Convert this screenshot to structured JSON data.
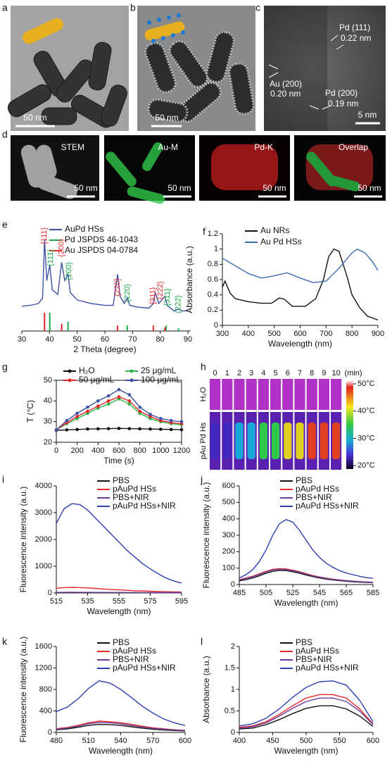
{
  "panel_labels": [
    "a",
    "b",
    "c",
    "d",
    "e",
    "f",
    "g",
    "h",
    "i",
    "j",
    "k",
    "l"
  ],
  "micrographs": [
    {
      "scale_bar": "50 nm"
    },
    {
      "scale_bar": "50 nm"
    },
    {
      "scale_bar": "5 nm",
      "annotations": [
        "Pd (111)",
        "0.22 nm",
        "Au (200)",
        "0.20 nm",
        "Pd (200)",
        "0.19 nm"
      ]
    }
  ],
  "maps": [
    {
      "label": "STEM",
      "scale_bar": "50 nm"
    },
    {
      "label": "Au-M",
      "scale_bar": "50 nm"
    },
    {
      "label": "Pd-K",
      "scale_bar": "50 nm"
    },
    {
      "label": "Overlap",
      "scale_bar": "50 nm"
    }
  ],
  "thermal": {
    "columns": [
      "0",
      "1",
      "2",
      "3",
      "4",
      "5",
      "6",
      "7",
      "8",
      "9",
      "10"
    ],
    "unit": "(min)",
    "rows": [
      "H₂O",
      "pAu Pd Hs"
    ],
    "colorbar_labels": [
      "50°C",
      "40°C",
      "30°C",
      "20°C"
    ]
  },
  "chart_data": [
    {
      "type": "line",
      "xlabel": "2 Theta (degree)",
      "xlim": [
        30,
        90
      ],
      "xticks": [
        30,
        40,
        50,
        60,
        70,
        80,
        90
      ],
      "ylim": [
        0,
        100
      ],
      "series": [
        {
          "name": "AuPd HSs",
          "color": "#3d52a4",
          "x": [
            30,
            33,
            36,
            37.5,
            38.2,
            39,
            40.1,
            41,
            43,
            44.4,
            45.5,
            46.7,
            47.5,
            50,
            55,
            60,
            63,
            64.6,
            65.5,
            67,
            68.1,
            69,
            72,
            76,
            77.5,
            78.2,
            79.5,
            81.7,
            82.5,
            85,
            86.6,
            88,
            90
          ],
          "values": [
            27,
            28,
            30,
            36,
            100,
            55,
            72,
            45,
            40,
            75,
            55,
            62,
            42,
            34,
            30,
            28,
            28,
            62,
            38,
            30,
            36,
            28,
            26,
            25,
            30,
            42,
            30,
            38,
            28,
            22,
            24,
            22,
            22
          ]
        },
        {
          "name": "Pd JSPDS 46-1043",
          "color": "#1aa84a",
          "mode": "stick",
          "x": [
            40.1,
            46.7,
            68.1,
            82.1,
            86.6
          ],
          "values": [
            20,
            10,
            6,
            6,
            3
          ]
        },
        {
          "name": "Au JSPDS 04-0784",
          "color": "#e8262b",
          "mode": "stick",
          "x": [
            38.2,
            44.4,
            64.6,
            77.5,
            81.7
          ],
          "values": [
            20,
            8,
            6,
            6,
            4
          ]
        }
      ],
      "annotations": [
        {
          "text": "{111}",
          "color": "#e8262b"
        },
        {
          "text": "{111}",
          "color": "#1aa84a"
        },
        {
          "text": "{200}",
          "color": "#e8262b"
        },
        {
          "text": "{200}",
          "color": "#1aa84a"
        },
        {
          "text": "{220}",
          "color": "#e8262b"
        },
        {
          "text": "{220}",
          "color": "#1aa84a"
        },
        {
          "text": "{311}",
          "color": "#e8262b"
        },
        {
          "text": "{222}",
          "color": "#e8262b"
        },
        {
          "text": "{311}",
          "color": "#1aa84a"
        },
        {
          "text": "{222}",
          "color": "#1aa84a"
        }
      ]
    },
    {
      "type": "line",
      "xlabel": "Wavelength (nm)",
      "ylabel": "Absorbance (a.u.)",
      "xlim": [
        300,
        900
      ],
      "xticks": [
        300,
        400,
        500,
        600,
        700,
        800,
        900
      ],
      "ylim": [
        0,
        1.2
      ],
      "yticks": [
        0,
        0.2,
        0.4,
        0.6,
        0.8,
        1,
        1.2
      ],
      "series": [
        {
          "name": "Au NRs",
          "color": "#111111",
          "x": [
            300,
            310,
            330,
            350,
            400,
            450,
            490,
            520,
            540,
            570,
            620,
            660,
            690,
            710,
            730,
            750,
            780,
            800,
            830,
            860,
            900
          ],
          "values": [
            0.5,
            0.58,
            0.42,
            0.35,
            0.31,
            0.29,
            0.29,
            0.36,
            0.34,
            0.25,
            0.25,
            0.35,
            0.6,
            0.9,
            1.0,
            0.97,
            0.65,
            0.4,
            0.23,
            0.12,
            0.07
          ]
        },
        {
          "name": "Au Pd HSs",
          "color": "#3d6bb3",
          "x": [
            300,
            350,
            400,
            450,
            500,
            550,
            600,
            650,
            700,
            750,
            800,
            820,
            850,
            880,
            900
          ],
          "values": [
            0.88,
            0.78,
            0.68,
            0.62,
            0.65,
            0.69,
            0.62,
            0.56,
            0.58,
            0.75,
            0.95,
            1.0,
            0.95,
            0.83,
            0.72
          ]
        }
      ]
    },
    {
      "type": "line",
      "xlabel": "Time (s)",
      "ylabel": "T (°C)",
      "xlim": [
        0,
        1200
      ],
      "xticks": [
        0,
        200,
        400,
        600,
        800,
        1000,
        1200
      ],
      "ylim": [
        20,
        50
      ],
      "yticks": [
        20,
        30,
        40,
        50
      ],
      "markers": true,
      "x": [
        0,
        100,
        200,
        300,
        400,
        500,
        600,
        700,
        800,
        900,
        1000,
        1100,
        1200
      ],
      "series": [
        {
          "name": "H₂O",
          "color": "#111111",
          "values": [
            25.8,
            26,
            26.2,
            26.4,
            26.5,
            26.6,
            26.7,
            26.6,
            26.5,
            26.4,
            26.3,
            26.2,
            26.1
          ]
        },
        {
          "name": "25 μg/mL",
          "color": "#2db34a",
          "values": [
            26,
            29,
            31.5,
            34,
            36.5,
            38.5,
            41,
            38.5,
            34,
            31.5,
            30,
            29,
            28.5
          ]
        },
        {
          "name": "50 μg/mL",
          "color": "#e8262b",
          "values": [
            26,
            29.5,
            32.5,
            35,
            37.5,
            40,
            42,
            40,
            35,
            32.5,
            30.5,
            29.5,
            29
          ]
        },
        {
          "name": "100 μg/mL",
          "color": "#3d52a4",
          "values": [
            26,
            30.5,
            34,
            37,
            40,
            42.5,
            45.5,
            43,
            37,
            33.5,
            31.5,
            30.5,
            30
          ]
        }
      ]
    },
    {
      "type": "line",
      "xlabel": "Wavelength (nm)",
      "ylabel": "Fluorescence intensity (a.u.)",
      "xlim": [
        515,
        595
      ],
      "xticks": [
        515,
        535,
        555,
        575,
        595
      ],
      "ylim": [
        0,
        4000
      ],
      "yticks": [
        0,
        1000,
        2000,
        3000,
        4000
      ],
      "x": [
        515,
        520,
        525,
        530,
        535,
        540,
        545,
        550,
        555,
        560,
        565,
        570,
        575,
        580,
        585,
        590,
        595
      ],
      "series": [
        {
          "name": "PBS",
          "color": "#111111",
          "values": [
            15,
            16,
            16,
            16,
            15,
            15,
            14,
            14,
            13,
            13,
            12,
            12,
            11,
            11,
            10,
            10,
            10
          ]
        },
        {
          "name": "pAuPd HSs",
          "color": "#e8262b",
          "values": [
            180,
            200,
            210,
            200,
            190,
            170,
            150,
            130,
            115,
            100,
            85,
            75,
            65,
            55,
            48,
            42,
            38
          ]
        },
        {
          "name": "PBS+NIR",
          "color": "#6a3d9a",
          "values": [
            22,
            24,
            25,
            24,
            23,
            22,
            21,
            20,
            19,
            18,
            17,
            16,
            15,
            14,
            14,
            13,
            13
          ]
        },
        {
          "name": "pAuPd HSs+NIR",
          "color": "#2e3fb0",
          "values": [
            2600,
            3150,
            3340,
            3300,
            3100,
            2800,
            2500,
            2200,
            1900,
            1600,
            1350,
            1100,
            900,
            720,
            560,
            450,
            370
          ]
        }
      ]
    },
    {
      "type": "line",
      "xlabel": "Wavelength (nm)",
      "ylabel": "Fluorescence intensity (a.u.)",
      "xlim": [
        485,
        585
      ],
      "xticks": [
        485,
        505,
        525,
        545,
        565,
        585
      ],
      "ylim": [
        0,
        600
      ],
      "yticks": [
        0,
        100,
        200,
        300,
        400,
        500,
        600
      ],
      "x": [
        485,
        490,
        495,
        500,
        505,
        510,
        515,
        520,
        525,
        530,
        535,
        540,
        545,
        550,
        555,
        560,
        565,
        570,
        575,
        580,
        585
      ],
      "series": [
        {
          "name": "PBS",
          "color": "#111111",
          "values": [
            22,
            30,
            40,
            53,
            68,
            80,
            86,
            85,
            78,
            69,
            58,
            48,
            40,
            33,
            28,
            24,
            20,
            17,
            15,
            13,
            12
          ]
        },
        {
          "name": "pAuPd HSs",
          "color": "#e8262b",
          "values": [
            30,
            40,
            50,
            65,
            80,
            92,
            97,
            95,
            88,
            78,
            66,
            55,
            46,
            39,
            33,
            28,
            24,
            21,
            18,
            16,
            14
          ]
        },
        {
          "name": "PBS+NIR",
          "color": "#6a3d9a",
          "values": [
            27,
            37,
            47,
            61,
            76,
            88,
            93,
            91,
            84,
            74,
            63,
            52,
            44,
            37,
            31,
            27,
            23,
            20,
            17,
            15,
            13
          ]
        },
        {
          "name": "pAuPd HSs+NIR",
          "color": "#2e3fb0",
          "values": [
            40,
            60,
            90,
            140,
            210,
            300,
            370,
            395,
            380,
            330,
            270,
            210,
            165,
            130,
            105,
            85,
            70,
            60,
            50,
            42,
            38
          ]
        }
      ]
    },
    {
      "type": "line",
      "xlabel": "Wavelength (nm)",
      "ylabel": "Fluorescence intensity (a.u.)",
      "xlim": [
        480,
        600
      ],
      "xticks": [
        480,
        510,
        540,
        570,
        600
      ],
      "ylim": [
        0,
        1600
      ],
      "yticks": [
        0,
        400,
        800,
        1200,
        1600
      ],
      "x": [
        480,
        490,
        500,
        510,
        520,
        530,
        540,
        550,
        560,
        570,
        580,
        590,
        600
      ],
      "series": [
        {
          "name": "PBS",
          "color": "#111111",
          "values": [
            50,
            65,
            95,
            130,
            150,
            145,
            130,
            105,
            80,
            60,
            45,
            35,
            28
          ]
        },
        {
          "name": "pAuPd HSs",
          "color": "#e8262b",
          "values": [
            70,
            90,
            130,
            180,
            210,
            200,
            180,
            150,
            115,
            85,
            65,
            50,
            40
          ]
        },
        {
          "name": "PBS+NIR",
          "color": "#6a3d9a",
          "values": [
            60,
            80,
            115,
            160,
            185,
            180,
            160,
            130,
            100,
            75,
            58,
            45,
            35
          ]
        },
        {
          "name": "pAuPd HSs+NIR",
          "color": "#2e3fb0",
          "values": [
            390,
            470,
            620,
            820,
            960,
            920,
            800,
            650,
            490,
            360,
            250,
            180,
            130
          ]
        }
      ]
    },
    {
      "type": "line",
      "xlabel": "Wavelength (nm)",
      "ylabel": "Absorbance (a.u.)",
      "xlim": [
        400,
        600
      ],
      "xticks": [
        400,
        450,
        500,
        550,
        600
      ],
      "ylim": [
        0,
        2
      ],
      "yticks": [
        0,
        0.5,
        1,
        1.5,
        2
      ],
      "x": [
        400,
        420,
        440,
        460,
        480,
        500,
        520,
        540,
        560,
        580,
        600
      ],
      "series": [
        {
          "name": "PBS",
          "color": "#111111",
          "values": [
            0.08,
            0.1,
            0.18,
            0.3,
            0.44,
            0.56,
            0.62,
            0.62,
            0.55,
            0.38,
            0.14
          ]
        },
        {
          "name": "pAuPd HSs",
          "color": "#e8262b",
          "values": [
            0.12,
            0.15,
            0.25,
            0.42,
            0.62,
            0.8,
            0.88,
            0.88,
            0.8,
            0.55,
            0.2
          ]
        },
        {
          "name": "PBS+NIR",
          "color": "#6a3d9a",
          "values": [
            0.1,
            0.13,
            0.22,
            0.38,
            0.56,
            0.72,
            0.8,
            0.8,
            0.72,
            0.5,
            0.18
          ]
        },
        {
          "name": "pAuPd HSs+NIR",
          "color": "#2e3fb0",
          "values": [
            0.15,
            0.2,
            0.33,
            0.55,
            0.82,
            1.05,
            1.18,
            1.2,
            1.1,
            0.75,
            0.25
          ]
        }
      ]
    }
  ]
}
